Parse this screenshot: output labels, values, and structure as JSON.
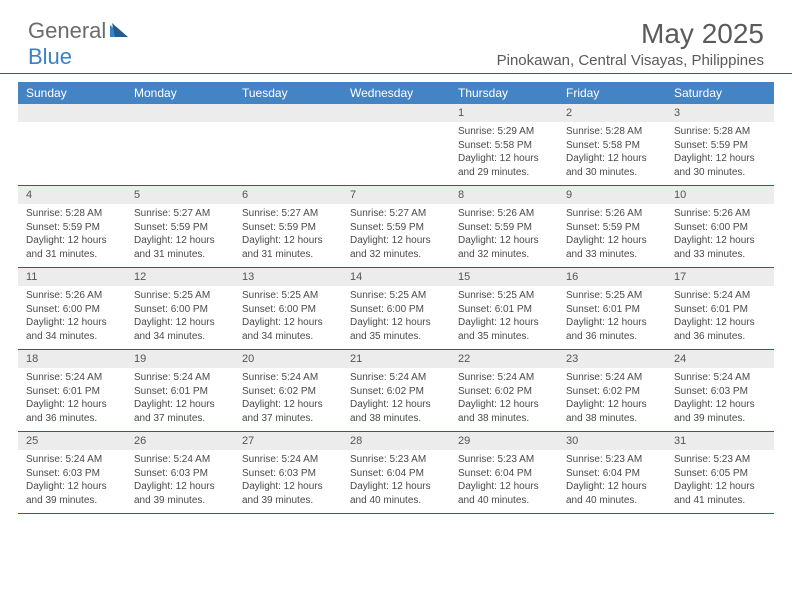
{
  "logo": {
    "text1": "General",
    "text2": "Blue"
  },
  "title": "May 2025",
  "location": "Pinokawan, Central Visayas, Philippines",
  "colors": {
    "header_bg": "#4584c4",
    "header_text": "#ffffff",
    "daynum_bg": "#ececec",
    "daynum_text": "#555555",
    "detail_text": "#4a4a4a",
    "rule": "#2f5a8a",
    "logo_gray": "#6b6b6b",
    "logo_blue": "#3b82c4",
    "title_color": "#5a5a5a",
    "background": "#ffffff"
  },
  "typography": {
    "month_title_fontsize": 28,
    "location_fontsize": 15,
    "dayheader_fontsize": 12,
    "daynum_fontsize": 11,
    "detail_fontsize": 10,
    "logo_fontsize": 22
  },
  "day_names": [
    "Sunday",
    "Monday",
    "Tuesday",
    "Wednesday",
    "Thursday",
    "Friday",
    "Saturday"
  ],
  "weeks": [
    {
      "nums": [
        "",
        "",
        "",
        "",
        "1",
        "2",
        "3"
      ],
      "details": [
        "",
        "",
        "",
        "",
        "Sunrise: 5:29 AM\nSunset: 5:58 PM\nDaylight: 12 hours and 29 minutes.",
        "Sunrise: 5:28 AM\nSunset: 5:58 PM\nDaylight: 12 hours and 30 minutes.",
        "Sunrise: 5:28 AM\nSunset: 5:59 PM\nDaylight: 12 hours and 30 minutes."
      ]
    },
    {
      "nums": [
        "4",
        "5",
        "6",
        "7",
        "8",
        "9",
        "10"
      ],
      "details": [
        "Sunrise: 5:28 AM\nSunset: 5:59 PM\nDaylight: 12 hours and 31 minutes.",
        "Sunrise: 5:27 AM\nSunset: 5:59 PM\nDaylight: 12 hours and 31 minutes.",
        "Sunrise: 5:27 AM\nSunset: 5:59 PM\nDaylight: 12 hours and 31 minutes.",
        "Sunrise: 5:27 AM\nSunset: 5:59 PM\nDaylight: 12 hours and 32 minutes.",
        "Sunrise: 5:26 AM\nSunset: 5:59 PM\nDaylight: 12 hours and 32 minutes.",
        "Sunrise: 5:26 AM\nSunset: 5:59 PM\nDaylight: 12 hours and 33 minutes.",
        "Sunrise: 5:26 AM\nSunset: 6:00 PM\nDaylight: 12 hours and 33 minutes."
      ]
    },
    {
      "nums": [
        "11",
        "12",
        "13",
        "14",
        "15",
        "16",
        "17"
      ],
      "details": [
        "Sunrise: 5:26 AM\nSunset: 6:00 PM\nDaylight: 12 hours and 34 minutes.",
        "Sunrise: 5:25 AM\nSunset: 6:00 PM\nDaylight: 12 hours and 34 minutes.",
        "Sunrise: 5:25 AM\nSunset: 6:00 PM\nDaylight: 12 hours and 34 minutes.",
        "Sunrise: 5:25 AM\nSunset: 6:00 PM\nDaylight: 12 hours and 35 minutes.",
        "Sunrise: 5:25 AM\nSunset: 6:01 PM\nDaylight: 12 hours and 35 minutes.",
        "Sunrise: 5:25 AM\nSunset: 6:01 PM\nDaylight: 12 hours and 36 minutes.",
        "Sunrise: 5:24 AM\nSunset: 6:01 PM\nDaylight: 12 hours and 36 minutes."
      ]
    },
    {
      "nums": [
        "18",
        "19",
        "20",
        "21",
        "22",
        "23",
        "24"
      ],
      "details": [
        "Sunrise: 5:24 AM\nSunset: 6:01 PM\nDaylight: 12 hours and 36 minutes.",
        "Sunrise: 5:24 AM\nSunset: 6:01 PM\nDaylight: 12 hours and 37 minutes.",
        "Sunrise: 5:24 AM\nSunset: 6:02 PM\nDaylight: 12 hours and 37 minutes.",
        "Sunrise: 5:24 AM\nSunset: 6:02 PM\nDaylight: 12 hours and 38 minutes.",
        "Sunrise: 5:24 AM\nSunset: 6:02 PM\nDaylight: 12 hours and 38 minutes.",
        "Sunrise: 5:24 AM\nSunset: 6:02 PM\nDaylight: 12 hours and 38 minutes.",
        "Sunrise: 5:24 AM\nSunset: 6:03 PM\nDaylight: 12 hours and 39 minutes."
      ]
    },
    {
      "nums": [
        "25",
        "26",
        "27",
        "28",
        "29",
        "30",
        "31"
      ],
      "details": [
        "Sunrise: 5:24 AM\nSunset: 6:03 PM\nDaylight: 12 hours and 39 minutes.",
        "Sunrise: 5:24 AM\nSunset: 6:03 PM\nDaylight: 12 hours and 39 minutes.",
        "Sunrise: 5:24 AM\nSunset: 6:03 PM\nDaylight: 12 hours and 39 minutes.",
        "Sunrise: 5:23 AM\nSunset: 6:04 PM\nDaylight: 12 hours and 40 minutes.",
        "Sunrise: 5:23 AM\nSunset: 6:04 PM\nDaylight: 12 hours and 40 minutes.",
        "Sunrise: 5:23 AM\nSunset: 6:04 PM\nDaylight: 12 hours and 40 minutes.",
        "Sunrise: 5:23 AM\nSunset: 6:05 PM\nDaylight: 12 hours and 41 minutes."
      ]
    }
  ]
}
